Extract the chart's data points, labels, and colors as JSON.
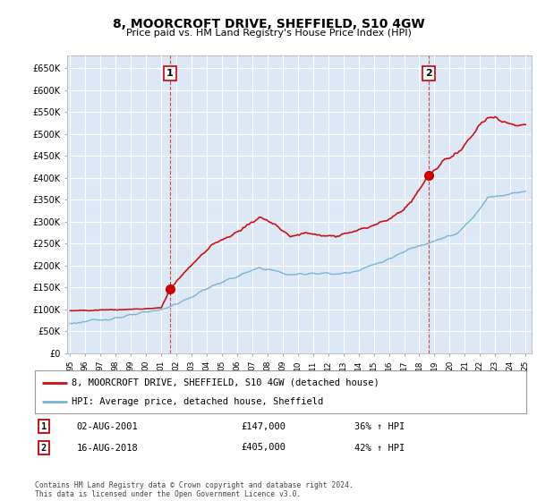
{
  "title": "8, MOORCROFT DRIVE, SHEFFIELD, S10 4GW",
  "subtitle": "Price paid vs. HM Land Registry's House Price Index (HPI)",
  "yticks": [
    0,
    50000,
    100000,
    150000,
    200000,
    250000,
    300000,
    350000,
    400000,
    450000,
    500000,
    550000,
    600000,
    650000
  ],
  "ylim": [
    0,
    680000
  ],
  "xlim_start": 1994.8,
  "xlim_end": 2025.4,
  "xticks": [
    1995,
    1996,
    1997,
    1998,
    1999,
    2000,
    2001,
    2002,
    2003,
    2004,
    2005,
    2006,
    2007,
    2008,
    2009,
    2010,
    2011,
    2012,
    2013,
    2014,
    2015,
    2016,
    2017,
    2018,
    2019,
    2020,
    2021,
    2022,
    2023,
    2024,
    2025
  ],
  "hpi_color": "#7ab3d4",
  "price_color": "#cc1111",
  "marker_color": "#cc0000",
  "legend_label_price": "8, MOORCROFT DRIVE, SHEFFIELD, S10 4GW (detached house)",
  "legend_label_hpi": "HPI: Average price, detached house, Sheffield",
  "sale1_date": "02-AUG-2001",
  "sale1_price": "£147,000",
  "sale1_hpi": "36% ↑ HPI",
  "sale1_x": 2001.58,
  "sale1_y": 147000,
  "sale2_date": "16-AUG-2018",
  "sale2_price": "£405,000",
  "sale2_hpi": "42% ↑ HPI",
  "sale2_x": 2018.62,
  "sale2_y": 405000,
  "bg_color": "#ffffff",
  "chart_bg": "#dce8f5",
  "footnote": "Contains HM Land Registry data © Crown copyright and database right 2024.\nThis data is licensed under the Open Government Licence v3.0."
}
